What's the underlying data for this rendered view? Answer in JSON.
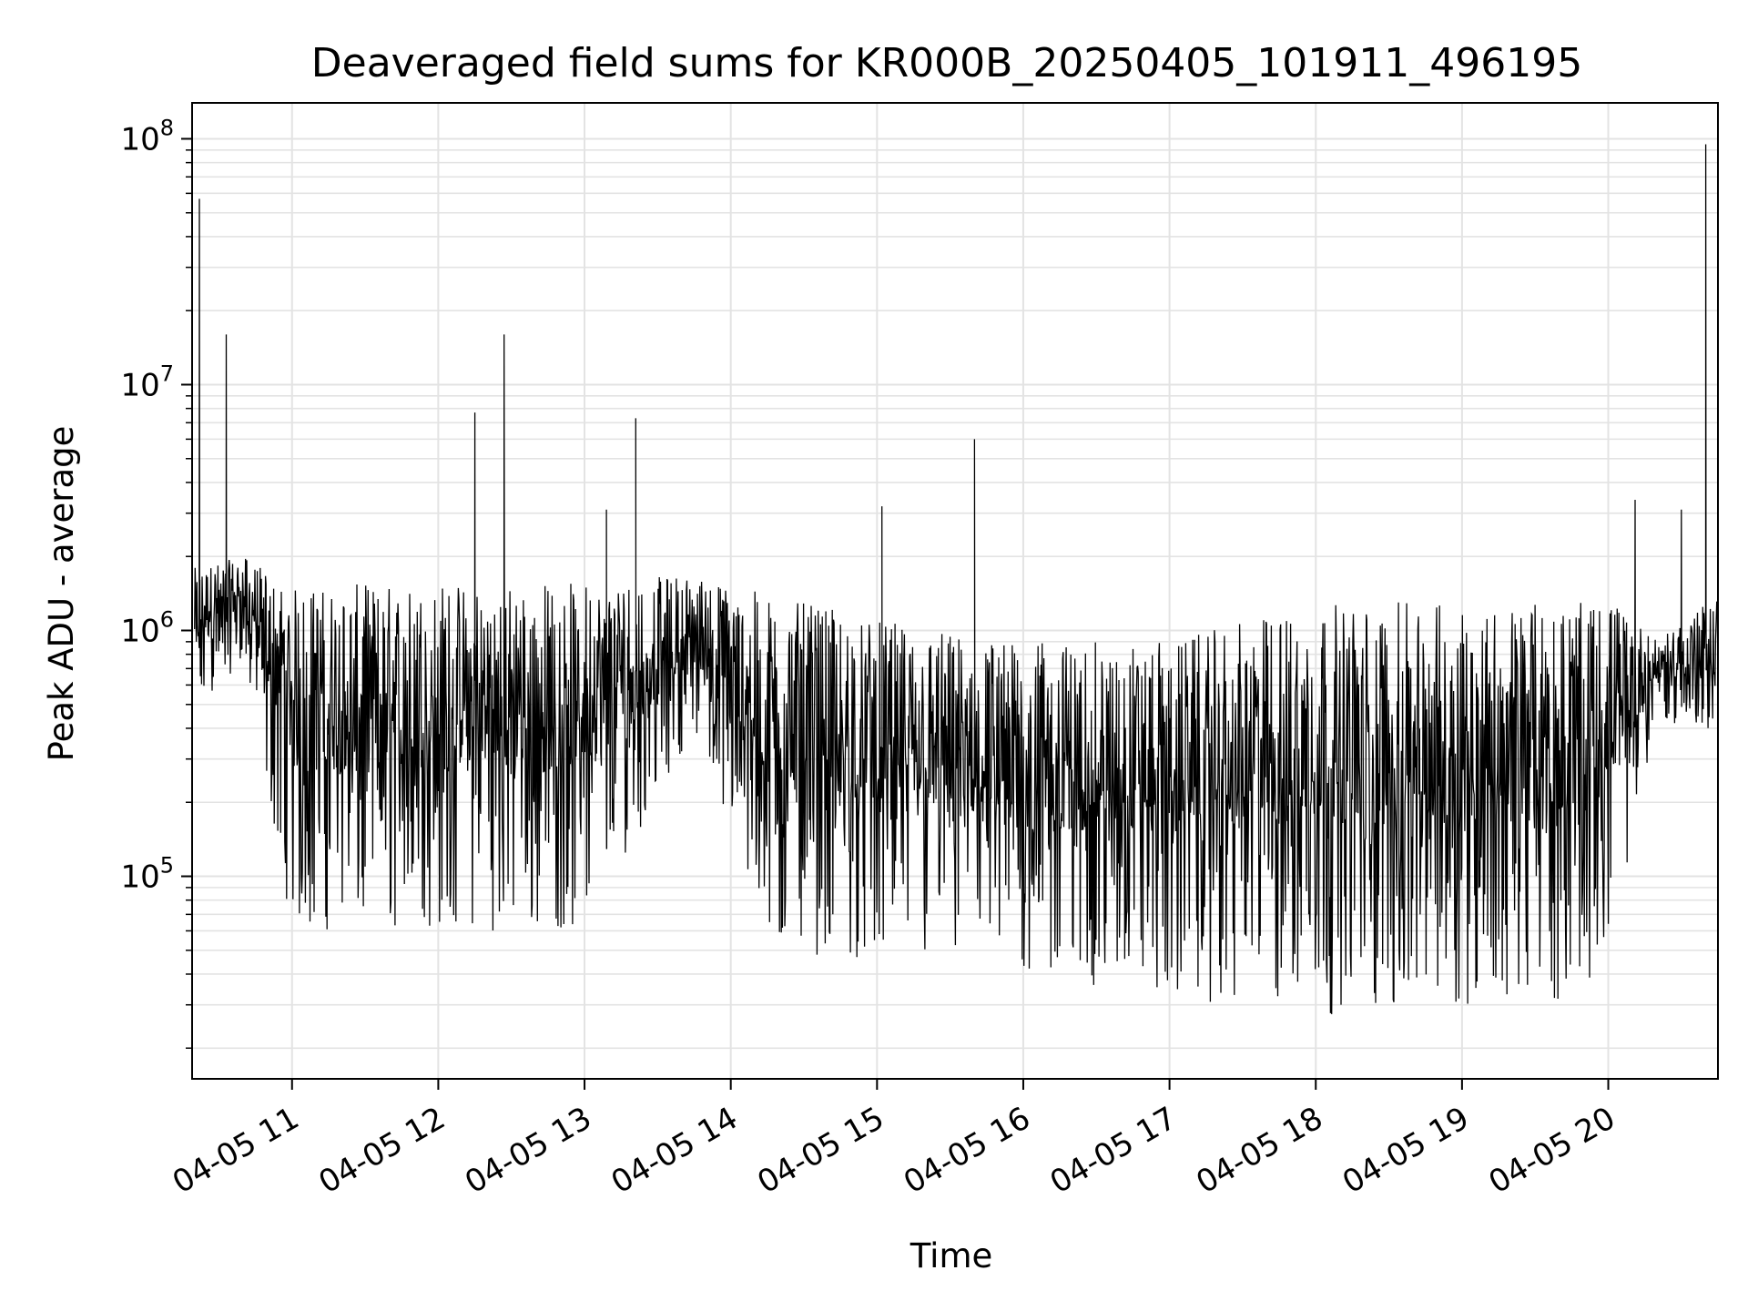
{
  "chart_data": {
    "type": "line",
    "title": "Deaveraged field sums for KR000B_20250405_101911_496195",
    "xlabel": "Time",
    "ylabel": "Peak ADU - average",
    "yscale": "log",
    "ylim": [
      15000,
      140000000
    ],
    "xlim": [
      "2025-04-05 10:19",
      "2025-04-05 20:45"
    ],
    "grid": true,
    "line_color": "#000000",
    "x_tick_labels": [
      "04-05 11",
      "04-05 12",
      "04-05 13",
      "04-05 14",
      "04-05 15",
      "04-05 16",
      "04-05 17",
      "04-05 18",
      "04-05 19",
      "04-05 20"
    ],
    "y_tick_labels": [
      {
        "base": "10",
        "exp": "5",
        "value": 100000
      },
      {
        "base": "10",
        "exp": "6",
        "value": 1000000
      },
      {
        "base": "10",
        "exp": "7",
        "value": 10000000
      },
      {
        "base": "10",
        "exp": "8",
        "value": 100000000
      }
    ],
    "series": [
      {
        "description_of_shape": "Dense noisy time series of roughly one sample per few seconds; values shown as a base level with frequent downward dips.",
        "envelope": [
          {
            "time": "10:20",
            "upper": 1800000,
            "lower": 400000
          },
          {
            "time": "10:40",
            "upper": 2000000,
            "lower": 800000
          },
          {
            "time": "11:00",
            "upper": 1500000,
            "lower": 60000
          },
          {
            "time": "12:00",
            "upper": 1600000,
            "lower": 60000
          },
          {
            "time": "13:00",
            "upper": 1600000,
            "lower": 60000
          },
          {
            "time": "13:45",
            "upper": 1700000,
            "lower": 400000
          },
          {
            "time": "14:15",
            "upper": 1400000,
            "lower": 50000
          },
          {
            "time": "15:00",
            "upper": 1100000,
            "lower": 45000
          },
          {
            "time": "16:00",
            "upper": 900000,
            "lower": 38000
          },
          {
            "time": "17:00",
            "upper": 900000,
            "lower": 32000
          },
          {
            "time": "18:00",
            "upper": 1300000,
            "lower": 27000
          },
          {
            "time": "19:00",
            "upper": 1300000,
            "lower": 30000
          },
          {
            "time": "19:50",
            "upper": 1300000,
            "lower": 32000
          },
          {
            "time": "20:05",
            "upper": 1300000,
            "lower": 80000
          },
          {
            "time": "20:20",
            "upper": 900000,
            "lower": 450000
          },
          {
            "time": "20:45",
            "upper": 1400000,
            "lower": 350000
          }
        ],
        "spikes": [
          {
            "time": "10:22",
            "value": 57000000
          },
          {
            "time": "10:33",
            "value": 16000000
          },
          {
            "time": "12:15",
            "value": 7700000
          },
          {
            "time": "12:27",
            "value": 16000000
          },
          {
            "time": "13:09",
            "value": 3100000
          },
          {
            "time": "13:21",
            "value": 7300000
          },
          {
            "time": "15:02",
            "value": 3200000
          },
          {
            "time": "15:40",
            "value": 6000000
          },
          {
            "time": "20:11",
            "value": 3400000
          },
          {
            "time": "20:30",
            "value": 3100000
          },
          {
            "time": "20:40",
            "value": 95000000
          }
        ]
      }
    ]
  }
}
